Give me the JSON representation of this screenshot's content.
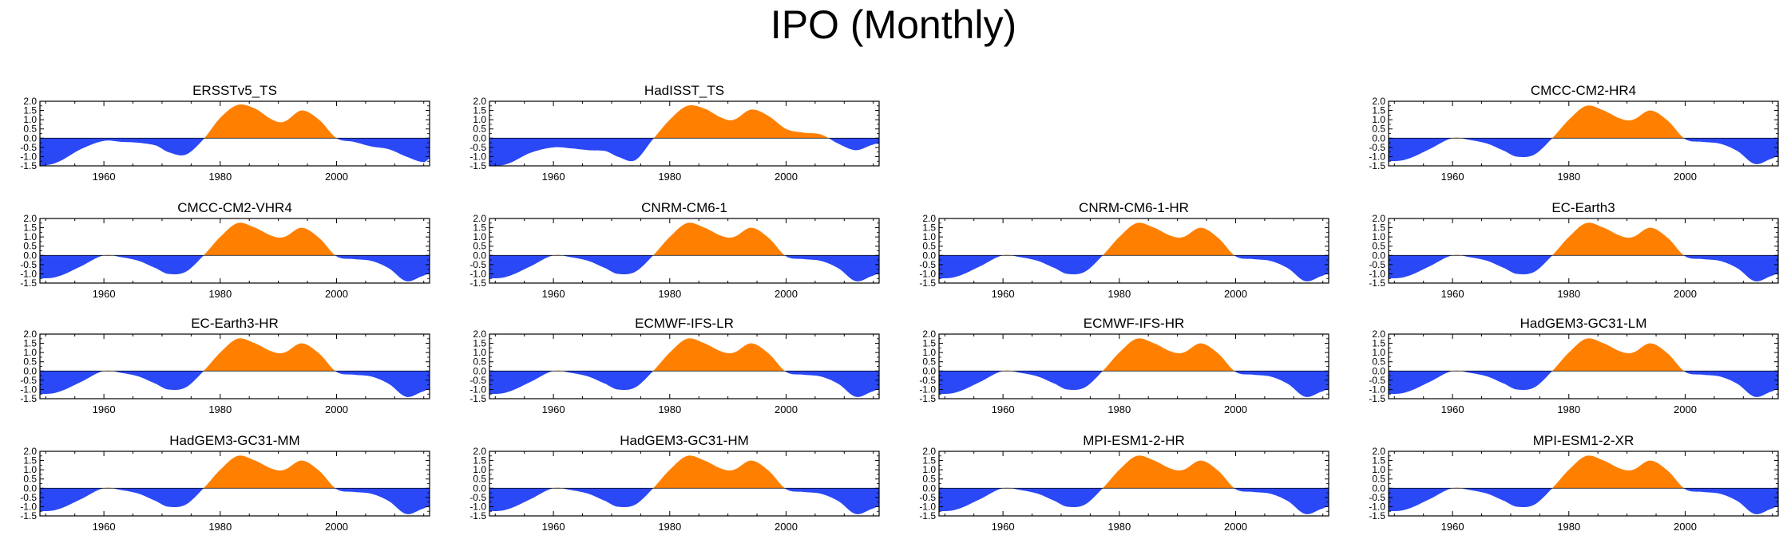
{
  "title": "IPO (Monthly)",
  "colors": {
    "positive": "#ff8000",
    "negative": "#2a48f5",
    "axis": "#000000"
  },
  "shared_axes": {
    "xlim": [
      1949,
      2016
    ],
    "ylim": [
      -1.5,
      2.0
    ],
    "x_ticks": [
      1960,
      1980,
      2000
    ],
    "y_ticks": [
      2.0,
      1.5,
      1.0,
      0.5,
      0.0,
      -0.5,
      -1.0,
      -1.5
    ],
    "y_tick_labels": [
      "2.0",
      "1.5",
      "1.0",
      "0.5",
      "0.0",
      "-0.5",
      "-1.0",
      "-1.5"
    ]
  },
  "chart_data": [
    {
      "type": "area",
      "title": "ERSSTv5_TS",
      "x": [
        1949,
        1952,
        1956,
        1960,
        1963,
        1966,
        1969,
        1971,
        1974,
        1977,
        1980,
        1983,
        1986,
        1989,
        1991,
        1994,
        1997,
        2000,
        2003,
        2006,
        2009,
        2012,
        2015,
        2016
      ],
      "y": [
        -1.5,
        -1.3,
        -0.6,
        -0.15,
        -0.2,
        -0.25,
        -0.4,
        -0.75,
        -0.9,
        -0.1,
        1.1,
        1.8,
        1.6,
        1.0,
        0.9,
        1.5,
        1.0,
        0.0,
        -0.2,
        -0.45,
        -0.6,
        -1.0,
        -1.3,
        -1.1
      ]
    },
    {
      "type": "area",
      "title": "HadISST_TS",
      "x": [
        1949,
        1952,
        1956,
        1960,
        1963,
        1966,
        1969,
        1971,
        1974,
        1977,
        1980,
        1983,
        1986,
        1989,
        1991,
        1994,
        1997,
        2000,
        2003,
        2006,
        2009,
        2012,
        2015,
        2016
      ],
      "y": [
        -1.5,
        -1.4,
        -0.8,
        -0.5,
        -0.55,
        -0.65,
        -0.7,
        -1.0,
        -1.2,
        -0.1,
        1.0,
        1.75,
        1.6,
        1.1,
        1.0,
        1.55,
        1.2,
        0.5,
        0.3,
        0.2,
        -0.3,
        -0.65,
        -0.35,
        -0.3
      ]
    },
    null,
    {
      "type": "area",
      "title": "CMCC-CM2-HR4",
      "x": [
        1949,
        1952,
        1956,
        1960,
        1963,
        1966,
        1969,
        1971,
        1974,
        1977,
        1980,
        1983,
        1986,
        1989,
        1991,
        1994,
        1997,
        2000,
        2003,
        2006,
        2009,
        2012,
        2015,
        2016
      ],
      "y": [
        -1.25,
        -1.15,
        -0.6,
        0.0,
        -0.1,
        -0.3,
        -0.7,
        -1.0,
        -0.9,
        -0.05,
        1.0,
        1.75,
        1.5,
        1.05,
        1.0,
        1.5,
        0.95,
        -0.05,
        -0.2,
        -0.3,
        -0.7,
        -1.4,
        -1.1,
        -1.0
      ]
    },
    {
      "type": "area",
      "title": "CMCC-CM2-VHR4",
      "x": [
        1949,
        1952,
        1956,
        1960,
        1963,
        1966,
        1969,
        1971,
        1974,
        1977,
        1980,
        1983,
        1986,
        1989,
        1991,
        1994,
        1997,
        2000,
        2003,
        2006,
        2009,
        2012,
        2015,
        2016
      ],
      "y": [
        -1.25,
        -1.15,
        -0.6,
        0.0,
        -0.1,
        -0.3,
        -0.7,
        -1.0,
        -0.9,
        -0.05,
        1.0,
        1.75,
        1.5,
        1.05,
        1.0,
        1.5,
        0.95,
        -0.05,
        -0.2,
        -0.3,
        -0.7,
        -1.4,
        -1.1,
        -1.0
      ]
    },
    {
      "type": "area",
      "title": "CNRM-CM6-1",
      "x": [
        1949,
        1952,
        1956,
        1960,
        1963,
        1966,
        1969,
        1971,
        1974,
        1977,
        1980,
        1983,
        1986,
        1989,
        1991,
        1994,
        1997,
        2000,
        2003,
        2006,
        2009,
        2012,
        2015,
        2016
      ],
      "y": [
        -1.25,
        -1.15,
        -0.6,
        0.0,
        -0.1,
        -0.3,
        -0.7,
        -1.0,
        -0.9,
        -0.05,
        1.0,
        1.75,
        1.5,
        1.05,
        1.0,
        1.5,
        0.95,
        -0.05,
        -0.2,
        -0.3,
        -0.7,
        -1.4,
        -1.1,
        -1.0
      ]
    },
    {
      "type": "area",
      "title": "CNRM-CM6-1-HR",
      "x": [
        1949,
        1952,
        1956,
        1960,
        1963,
        1966,
        1969,
        1971,
        1974,
        1977,
        1980,
        1983,
        1986,
        1989,
        1991,
        1994,
        1997,
        2000,
        2003,
        2006,
        2009,
        2012,
        2015,
        2016
      ],
      "y": [
        -1.25,
        -1.15,
        -0.6,
        0.0,
        -0.1,
        -0.3,
        -0.7,
        -1.0,
        -0.9,
        -0.05,
        1.0,
        1.75,
        1.5,
        1.05,
        1.0,
        1.5,
        0.95,
        -0.05,
        -0.2,
        -0.3,
        -0.7,
        -1.4,
        -1.1,
        -1.0
      ]
    },
    {
      "type": "area",
      "title": "EC-Earth3",
      "x": [
        1949,
        1952,
        1956,
        1960,
        1963,
        1966,
        1969,
        1971,
        1974,
        1977,
        1980,
        1983,
        1986,
        1989,
        1991,
        1994,
        1997,
        2000,
        2003,
        2006,
        2009,
        2012,
        2015,
        2016
      ],
      "y": [
        -1.25,
        -1.15,
        -0.6,
        0.0,
        -0.1,
        -0.3,
        -0.7,
        -1.0,
        -0.9,
        -0.05,
        1.0,
        1.75,
        1.5,
        1.05,
        1.0,
        1.5,
        0.95,
        -0.05,
        -0.2,
        -0.3,
        -0.7,
        -1.4,
        -1.1,
        -1.0
      ]
    },
    {
      "type": "area",
      "title": "EC-Earth3-HR",
      "x": [
        1949,
        1952,
        1956,
        1960,
        1963,
        1966,
        1969,
        1971,
        1974,
        1977,
        1980,
        1983,
        1986,
        1989,
        1991,
        1994,
        1997,
        2000,
        2003,
        2006,
        2009,
        2012,
        2015,
        2016
      ],
      "y": [
        -1.25,
        -1.15,
        -0.6,
        0.0,
        -0.1,
        -0.3,
        -0.7,
        -1.0,
        -0.9,
        -0.05,
        1.0,
        1.75,
        1.5,
        1.05,
        1.0,
        1.5,
        0.95,
        -0.05,
        -0.2,
        -0.3,
        -0.7,
        -1.4,
        -1.1,
        -1.0
      ]
    },
    {
      "type": "area",
      "title": "ECMWF-IFS-LR",
      "x": [
        1949,
        1952,
        1956,
        1960,
        1963,
        1966,
        1969,
        1971,
        1974,
        1977,
        1980,
        1983,
        1986,
        1989,
        1991,
        1994,
        1997,
        2000,
        2003,
        2006,
        2009,
        2012,
        2015,
        2016
      ],
      "y": [
        -1.25,
        -1.15,
        -0.6,
        0.0,
        -0.1,
        -0.3,
        -0.7,
        -1.0,
        -0.9,
        -0.05,
        1.0,
        1.75,
        1.5,
        1.05,
        1.0,
        1.5,
        0.95,
        -0.05,
        -0.2,
        -0.3,
        -0.7,
        -1.4,
        -1.1,
        -1.0
      ]
    },
    {
      "type": "area",
      "title": "ECMWF-IFS-HR",
      "x": [
        1949,
        1952,
        1956,
        1960,
        1963,
        1966,
        1969,
        1971,
        1974,
        1977,
        1980,
        1983,
        1986,
        1989,
        1991,
        1994,
        1997,
        2000,
        2003,
        2006,
        2009,
        2012,
        2015,
        2016
      ],
      "y": [
        -1.25,
        -1.15,
        -0.6,
        0.0,
        -0.1,
        -0.3,
        -0.7,
        -1.0,
        -0.9,
        -0.05,
        1.0,
        1.75,
        1.5,
        1.05,
        1.0,
        1.5,
        0.95,
        -0.05,
        -0.2,
        -0.3,
        -0.7,
        -1.4,
        -1.1,
        -1.0
      ]
    },
    {
      "type": "area",
      "title": "HadGEM3-GC31-LM",
      "x": [
        1949,
        1952,
        1956,
        1960,
        1963,
        1966,
        1969,
        1971,
        1974,
        1977,
        1980,
        1983,
        1986,
        1989,
        1991,
        1994,
        1997,
        2000,
        2003,
        2006,
        2009,
        2012,
        2015,
        2016
      ],
      "y": [
        -1.25,
        -1.15,
        -0.6,
        0.0,
        -0.1,
        -0.3,
        -0.7,
        -1.0,
        -0.9,
        -0.05,
        1.0,
        1.75,
        1.5,
        1.05,
        1.0,
        1.5,
        0.95,
        -0.05,
        -0.2,
        -0.3,
        -0.7,
        -1.4,
        -1.1,
        -1.0
      ]
    },
    {
      "type": "area",
      "title": "HadGEM3-GC31-MM",
      "x": [
        1949,
        1952,
        1956,
        1960,
        1963,
        1966,
        1969,
        1971,
        1974,
        1977,
        1980,
        1983,
        1986,
        1989,
        1991,
        1994,
        1997,
        2000,
        2003,
        2006,
        2009,
        2012,
        2015,
        2016
      ],
      "y": [
        -1.25,
        -1.15,
        -0.6,
        0.0,
        -0.1,
        -0.3,
        -0.7,
        -1.0,
        -0.9,
        -0.05,
        1.0,
        1.75,
        1.5,
        1.05,
        1.0,
        1.5,
        0.95,
        -0.05,
        -0.2,
        -0.3,
        -0.7,
        -1.4,
        -1.1,
        -1.0
      ]
    },
    {
      "type": "area",
      "title": "HadGEM3-GC31-HM",
      "x": [
        1949,
        1952,
        1956,
        1960,
        1963,
        1966,
        1969,
        1971,
        1974,
        1977,
        1980,
        1983,
        1986,
        1989,
        1991,
        1994,
        1997,
        2000,
        2003,
        2006,
        2009,
        2012,
        2015,
        2016
      ],
      "y": [
        -1.25,
        -1.15,
        -0.6,
        0.0,
        -0.1,
        -0.3,
        -0.7,
        -1.0,
        -0.9,
        -0.05,
        1.0,
        1.75,
        1.5,
        1.05,
        1.0,
        1.5,
        0.95,
        -0.05,
        -0.2,
        -0.3,
        -0.7,
        -1.4,
        -1.1,
        -1.0
      ]
    },
    {
      "type": "area",
      "title": "MPI-ESM1-2-HR",
      "x": [
        1949,
        1952,
        1956,
        1960,
        1963,
        1966,
        1969,
        1971,
        1974,
        1977,
        1980,
        1983,
        1986,
        1989,
        1991,
        1994,
        1997,
        2000,
        2003,
        2006,
        2009,
        2012,
        2015,
        2016
      ],
      "y": [
        -1.25,
        -1.15,
        -0.6,
        0.0,
        -0.1,
        -0.3,
        -0.7,
        -1.0,
        -0.9,
        -0.05,
        1.0,
        1.75,
        1.5,
        1.05,
        1.0,
        1.5,
        0.95,
        -0.05,
        -0.2,
        -0.3,
        -0.7,
        -1.4,
        -1.1,
        -1.0
      ]
    },
    {
      "type": "area",
      "title": "MPI-ESM1-2-XR",
      "x": [
        1949,
        1952,
        1956,
        1960,
        1963,
        1966,
        1969,
        1971,
        1974,
        1977,
        1980,
        1983,
        1986,
        1989,
        1991,
        1994,
        1997,
        2000,
        2003,
        2006,
        2009,
        2012,
        2015,
        2016
      ],
      "y": [
        -1.25,
        -1.15,
        -0.6,
        0.0,
        -0.1,
        -0.3,
        -0.7,
        -1.0,
        -0.9,
        -0.05,
        1.0,
        1.75,
        1.5,
        1.05,
        1.0,
        1.5,
        0.95,
        -0.05,
        -0.2,
        -0.3,
        -0.7,
        -1.4,
        -1.1,
        -1.0
      ]
    }
  ]
}
